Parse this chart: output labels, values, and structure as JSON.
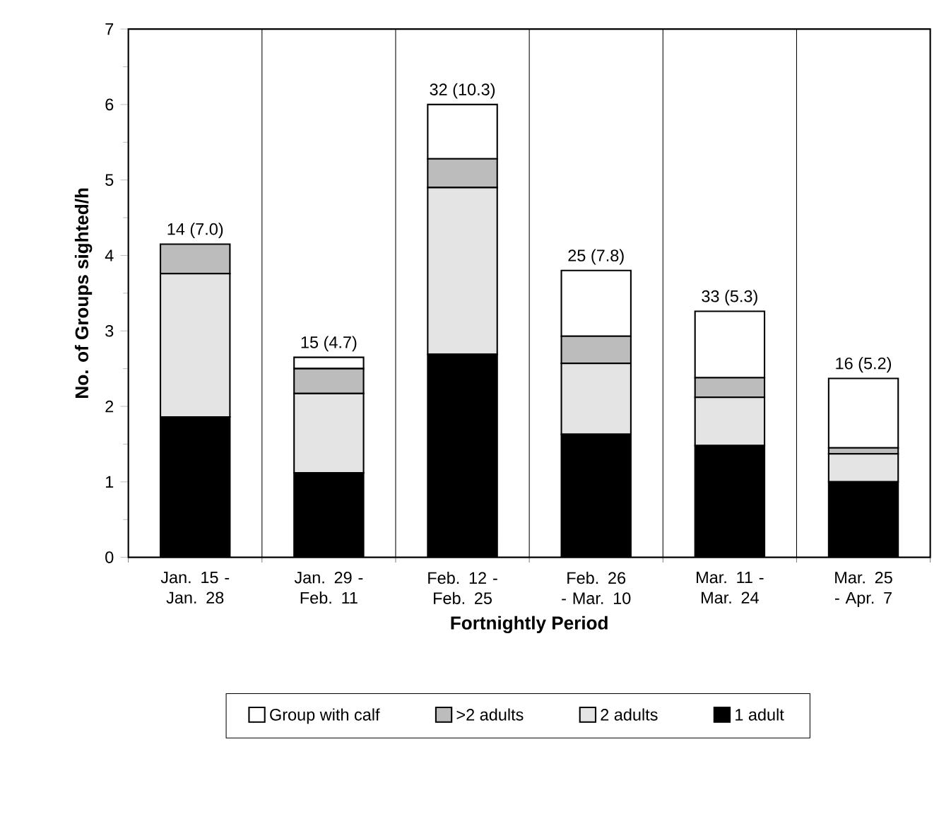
{
  "chart_data": {
    "type": "bar",
    "stacked": true,
    "xlabel": "Fortnightly Period",
    "ylabel": "No. of Groups sighted/h",
    "categories": [
      "Jan. 15 - Jan. 28",
      "Jan. 29 - Feb. 11",
      "Feb. 12 - Feb. 25",
      "Feb. 26 - Mar. 10",
      "Mar. 11 - Mar. 24",
      "Mar. 25 - Apr. 7"
    ],
    "series": [
      {
        "name": "1 adult",
        "color": "#000000",
        "values": [
          1.86,
          1.12,
          2.69,
          1.63,
          1.48,
          1.0
        ]
      },
      {
        "name": "2 adults",
        "color": "#e4e4e4",
        "values": [
          1.9,
          1.05,
          2.21,
          0.94,
          0.64,
          0.37
        ]
      },
      {
        "name": ">2 adults",
        "color": "#bcbcbc",
        "values": [
          0.39,
          0.33,
          0.38,
          0.36,
          0.26,
          0.08
        ]
      },
      {
        "name": "Group with calf",
        "color": "#ffffff",
        "values": [
          0,
          0.15,
          0.72,
          0.87,
          0.88,
          0.92
        ]
      }
    ],
    "totals": [
      "14 (7.0)",
      "15 (4.7)",
      "32 (10.3)",
      "25 (7.8)",
      "33 (5.3)",
      "16 (5.2)"
    ],
    "ylim": [
      0,
      7
    ],
    "yticks": [
      0,
      1,
      2,
      3,
      4,
      5,
      6,
      7
    ],
    "grid": "x",
    "legend": "bottom"
  }
}
